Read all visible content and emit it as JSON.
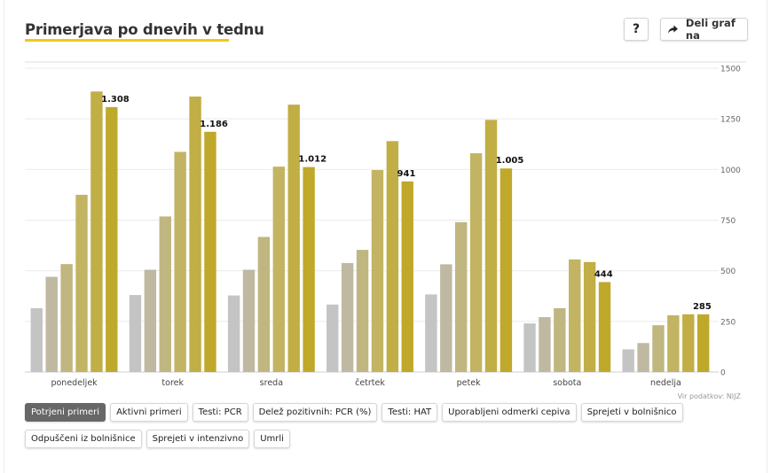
{
  "header": {
    "title": "Primerjava po dnevih v tednu",
    "help_label": "?",
    "share_label": "Deli graf na"
  },
  "source_text": "Vir podatkov: NIJZ",
  "buttons": [
    "Potrjeni primeri",
    "Aktivni primeri",
    "Testi: PCR",
    "Delež pozitivnih: PCR (%)",
    "Testi: HAT",
    "Uporabljeni odmerki cepiva",
    "Sprejeti v bolnišnico",
    "Odpuščeni iz bolnišnice",
    "Sprejeti v intenzivno",
    "Umrli"
  ],
  "active_button": 0,
  "chart_data": {
    "type": "bar",
    "categories": [
      "ponedeljek",
      "torek",
      "sreda",
      "četrtek",
      "petek",
      "sobota",
      "nedelja"
    ],
    "series": [
      {
        "values": [
          315,
          380,
          378,
          333,
          383,
          240,
          112
        ]
      },
      {
        "values": [
          470,
          505,
          505,
          538,
          532,
          271,
          143
        ]
      },
      {
        "values": [
          533,
          768,
          667,
          603,
          740,
          315,
          231
        ]
      },
      {
        "values": [
          875,
          1087,
          1014,
          997,
          1080,
          556,
          280
        ]
      },
      {
        "values": [
          1385,
          1360,
          1320,
          1140,
          1245,
          543,
          285
        ]
      },
      {
        "values": [
          1308,
          1186,
          1012,
          941,
          1005,
          444,
          285
        ]
      }
    ],
    "series_colors": [
      "#c4c4c4",
      "#bfb9a2",
      "#c0b680",
      "#c2b462",
      "#c1ae45",
      "#c0a82b"
    ],
    "data_labels": [
      "1.308",
      "1.186",
      "1.012",
      "941",
      "1.005",
      "444",
      "285"
    ],
    "yticks": [
      "0",
      "250",
      "500",
      "750",
      "1000",
      "1250",
      "1500"
    ],
    "ylim": [
      0,
      1500
    ],
    "grid": true,
    "y_axis_side": "right"
  }
}
